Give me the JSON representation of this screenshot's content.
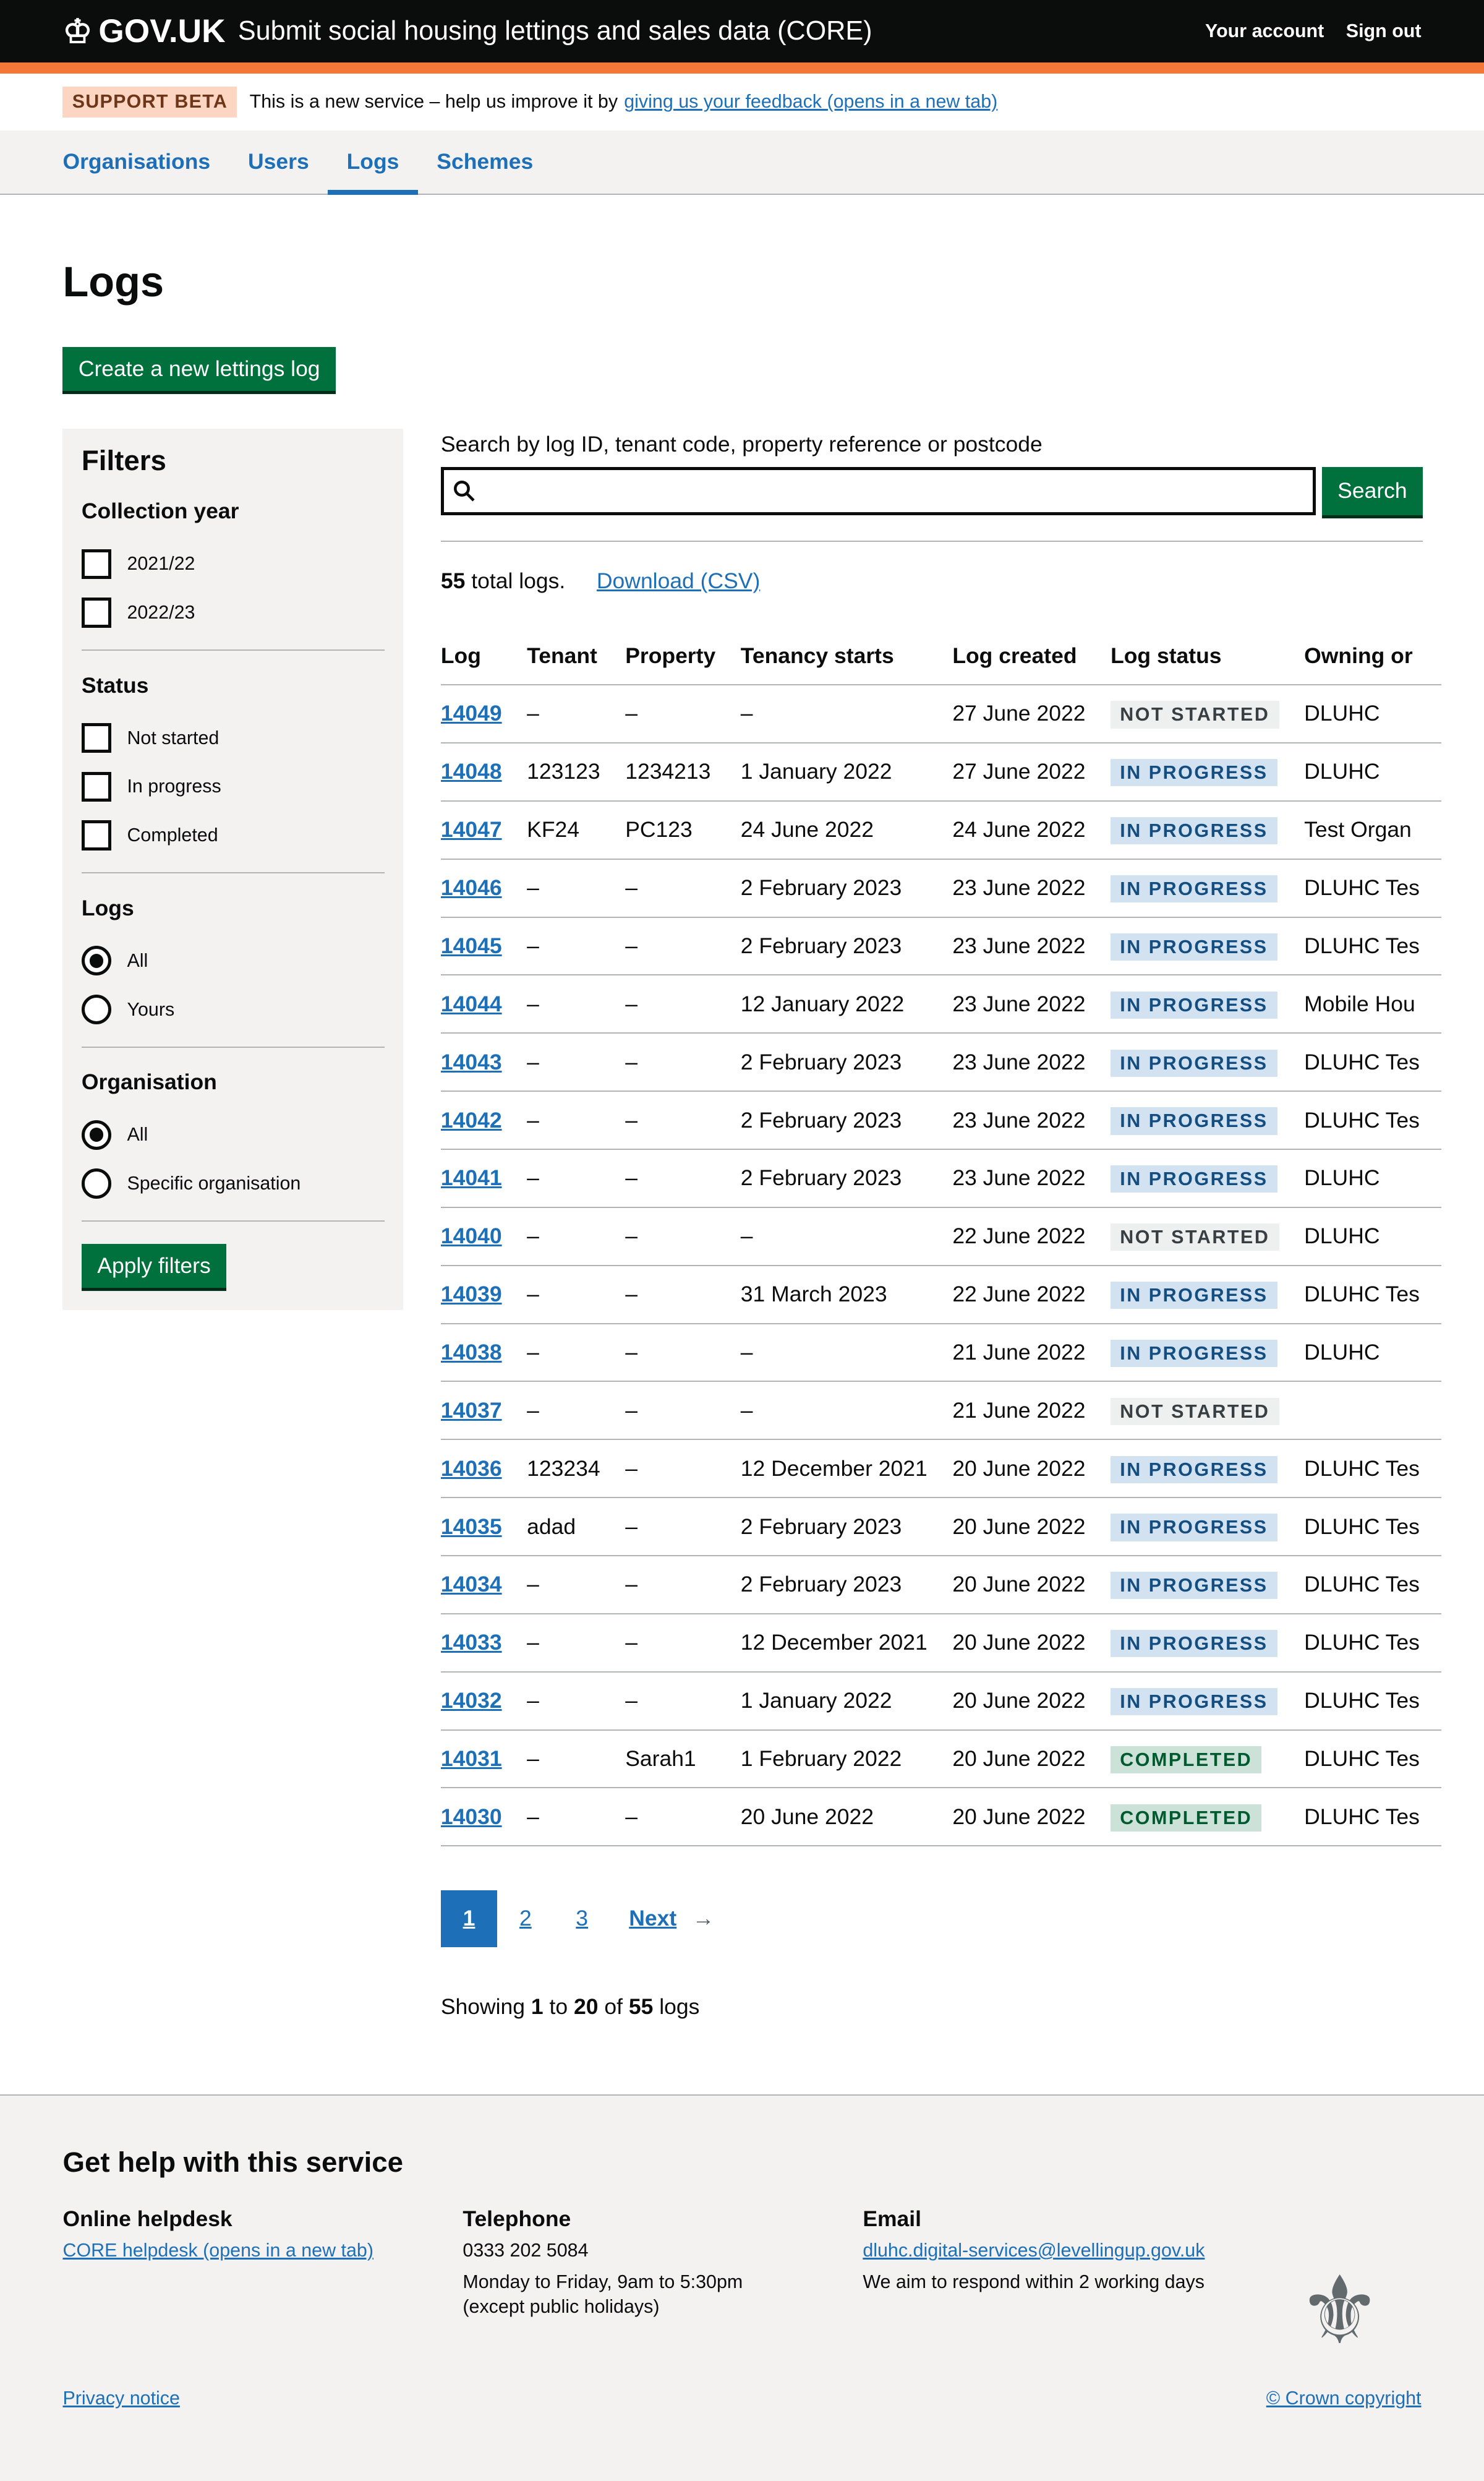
{
  "header": {
    "logo": "GOV.UK",
    "service": "Submit social housing lettings and sales data (CORE)",
    "links": [
      "Your account",
      "Sign out"
    ]
  },
  "beta": {
    "tag": "SUPPORT BETA",
    "text": "This is a new service – help us improve it by",
    "link": "giving us your feedback (opens in a new tab)"
  },
  "nav": [
    {
      "label": "Organisations"
    },
    {
      "label": "Users"
    },
    {
      "label": "Logs",
      "active": true
    },
    {
      "label": "Schemes"
    }
  ],
  "page_title": "Logs",
  "create_button": "Create a new lettings log",
  "filters": {
    "title": "Filters",
    "collection_year": {
      "label": "Collection year",
      "options": [
        "2021/22",
        "2022/23"
      ]
    },
    "status": {
      "label": "Status",
      "options": [
        "Not started",
        "In progress",
        "Completed"
      ]
    },
    "logs": {
      "label": "Logs",
      "options": [
        "All",
        "Yours"
      ],
      "selected": "All"
    },
    "organisation": {
      "label": "Organisation",
      "options": [
        "All",
        "Specific organisation"
      ],
      "selected": "All"
    },
    "apply": "Apply filters"
  },
  "search": {
    "label": "Search by log ID, tenant code, property reference or postcode",
    "value": "",
    "button": "Search"
  },
  "summary": {
    "total": "55",
    "total_suffix": "total logs.",
    "download": "Download (CSV)"
  },
  "table": {
    "headers": [
      "Log",
      "Tenant",
      "Property",
      "Tenancy starts",
      "Log created",
      "Log status",
      "Owning or"
    ],
    "rows": [
      [
        "14049",
        "–",
        "–",
        "–",
        "27 June 2022",
        "NOT STARTED",
        "DLUHC"
      ],
      [
        "14048",
        "123123",
        "1234213",
        "1 January 2022",
        "27 June 2022",
        "IN PROGRESS",
        "DLUHC"
      ],
      [
        "14047",
        "KF24",
        "PC123",
        "24 June 2022",
        "24 June 2022",
        "IN PROGRESS",
        "Test Organ"
      ],
      [
        "14046",
        "–",
        "–",
        "2 February 2023",
        "23 June 2022",
        "IN PROGRESS",
        "DLUHC Tes"
      ],
      [
        "14045",
        "–",
        "–",
        "2 February 2023",
        "23 June 2022",
        "IN PROGRESS",
        "DLUHC Tes"
      ],
      [
        "14044",
        "–",
        "–",
        "12 January 2022",
        "23 June 2022",
        "IN PROGRESS",
        "Mobile Hou"
      ],
      [
        "14043",
        "–",
        "–",
        "2 February 2023",
        "23 June 2022",
        "IN PROGRESS",
        "DLUHC Tes"
      ],
      [
        "14042",
        "–",
        "–",
        "2 February 2023",
        "23 June 2022",
        "IN PROGRESS",
        "DLUHC Tes"
      ],
      [
        "14041",
        "–",
        "–",
        "2 February 2023",
        "23 June 2022",
        "IN PROGRESS",
        "DLUHC"
      ],
      [
        "14040",
        "–",
        "–",
        "–",
        "22 June 2022",
        "NOT STARTED",
        "DLUHC"
      ],
      [
        "14039",
        "–",
        "–",
        "31 March 2023",
        "22 June 2022",
        "IN PROGRESS",
        "DLUHC Tes"
      ],
      [
        "14038",
        "–",
        "–",
        "–",
        "21 June 2022",
        "IN PROGRESS",
        "DLUHC"
      ],
      [
        "14037",
        "–",
        "–",
        "–",
        "21 June 2022",
        "NOT STARTED",
        ""
      ],
      [
        "14036",
        "123234",
        "–",
        "12 December 2021",
        "20 June 2022",
        "IN PROGRESS",
        "DLUHC Tes"
      ],
      [
        "14035",
        "adad",
        "–",
        "2 February 2023",
        "20 June 2022",
        "IN PROGRESS",
        "DLUHC Tes"
      ],
      [
        "14034",
        "–",
        "–",
        "2 February 2023",
        "20 June 2022",
        "IN PROGRESS",
        "DLUHC Tes"
      ],
      [
        "14033",
        "–",
        "–",
        "12 December 2021",
        "20 June 2022",
        "IN PROGRESS",
        "DLUHC Tes"
      ],
      [
        "14032",
        "–",
        "–",
        "1 January 2022",
        "20 June 2022",
        "IN PROGRESS",
        "DLUHC Tes"
      ],
      [
        "14031",
        "–",
        "Sarah1",
        "1 February 2022",
        "20 June 2022",
        "COMPLETED",
        "DLUHC Tes"
      ],
      [
        "14030",
        "–",
        "–",
        "20 June 2022",
        "20 June 2022",
        "COMPLETED",
        "DLUHC Tes"
      ]
    ]
  },
  "status_colors": {
    "NOT STARTED": {
      "bg": "#eeefef",
      "fg": "#383f43"
    },
    "IN PROGRESS": {
      "bg": "#d2e2f1",
      "fg": "#144e81"
    },
    "COMPLETED": {
      "bg": "#cce2d8",
      "fg": "#005a30"
    }
  },
  "pagination": {
    "pages": [
      "1",
      "2",
      "3"
    ],
    "current": "1",
    "next": "Next"
  },
  "showing": {
    "prefix": "Showing",
    "from": "1",
    "to_word": "to",
    "to": "20",
    "of_word": "of",
    "total": "55",
    "suffix": "logs"
  },
  "footer": {
    "title": "Get help with this service",
    "helpdesk": {
      "title": "Online helpdesk",
      "link": "CORE helpdesk (opens in a new tab)"
    },
    "telephone": {
      "title": "Telephone",
      "number": "0333 202 5084",
      "hours": "Monday to Friday, 9am to 5:30pm",
      "note": "(except public holidays)"
    },
    "email": {
      "title": "Email",
      "address": "dluhc.digital-services@levellingup.gov.uk",
      "note": "We aim to respond within 2 working days"
    },
    "privacy": "Privacy notice",
    "copyright": "© Crown copyright"
  }
}
